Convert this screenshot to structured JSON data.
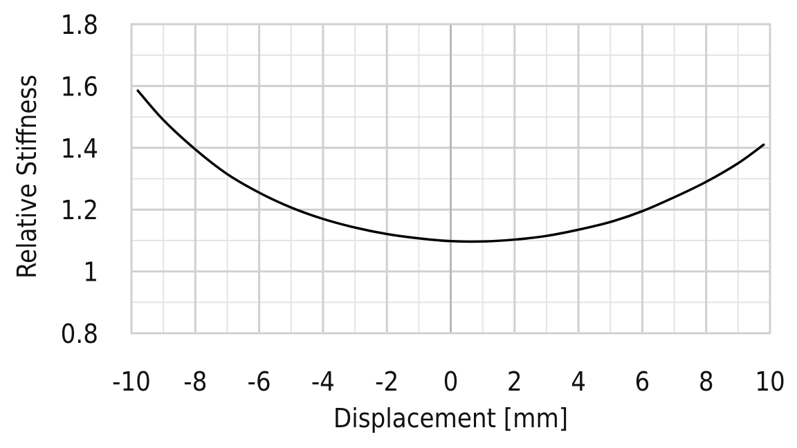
{
  "chart_data": {
    "type": "line",
    "xlabel": "Displacement [mm]",
    "ylabel": "Relative Stiffness",
    "xlim": [
      -10,
      10
    ],
    "ylim": [
      0.8,
      1.8
    ],
    "x_ticks": [
      -10,
      -8,
      -6,
      -4,
      -2,
      0,
      2,
      4,
      6,
      8,
      10
    ],
    "x_tick_labels": [
      "-10",
      "-8",
      "-6",
      "-4",
      "-2",
      "0",
      "2",
      "4",
      "6",
      "8",
      "10"
    ],
    "y_ticks": [
      0.8,
      1.0,
      1.2,
      1.4,
      1.6,
      1.8
    ],
    "y_tick_labels": [
      "0.8",
      "1",
      "1.2",
      "1.4",
      "1.6",
      "1.8"
    ],
    "x_minor_step": 1,
    "y_minor_step": 0.1,
    "grid": true,
    "series": [
      {
        "color": "#000000",
        "x": [
          -9.8,
          -9,
          -8,
          -7,
          -6,
          -5,
          -4,
          -3,
          -2,
          -1,
          0,
          1,
          2,
          3,
          4,
          5,
          6,
          7,
          8,
          9,
          9.8
        ],
        "y": [
          1.585,
          1.49,
          1.395,
          1.315,
          1.255,
          1.207,
          1.17,
          1.142,
          1.121,
          1.107,
          1.098,
          1.097,
          1.103,
          1.115,
          1.135,
          1.16,
          1.195,
          1.24,
          1.29,
          1.35,
          1.41
        ]
      }
    ]
  }
}
